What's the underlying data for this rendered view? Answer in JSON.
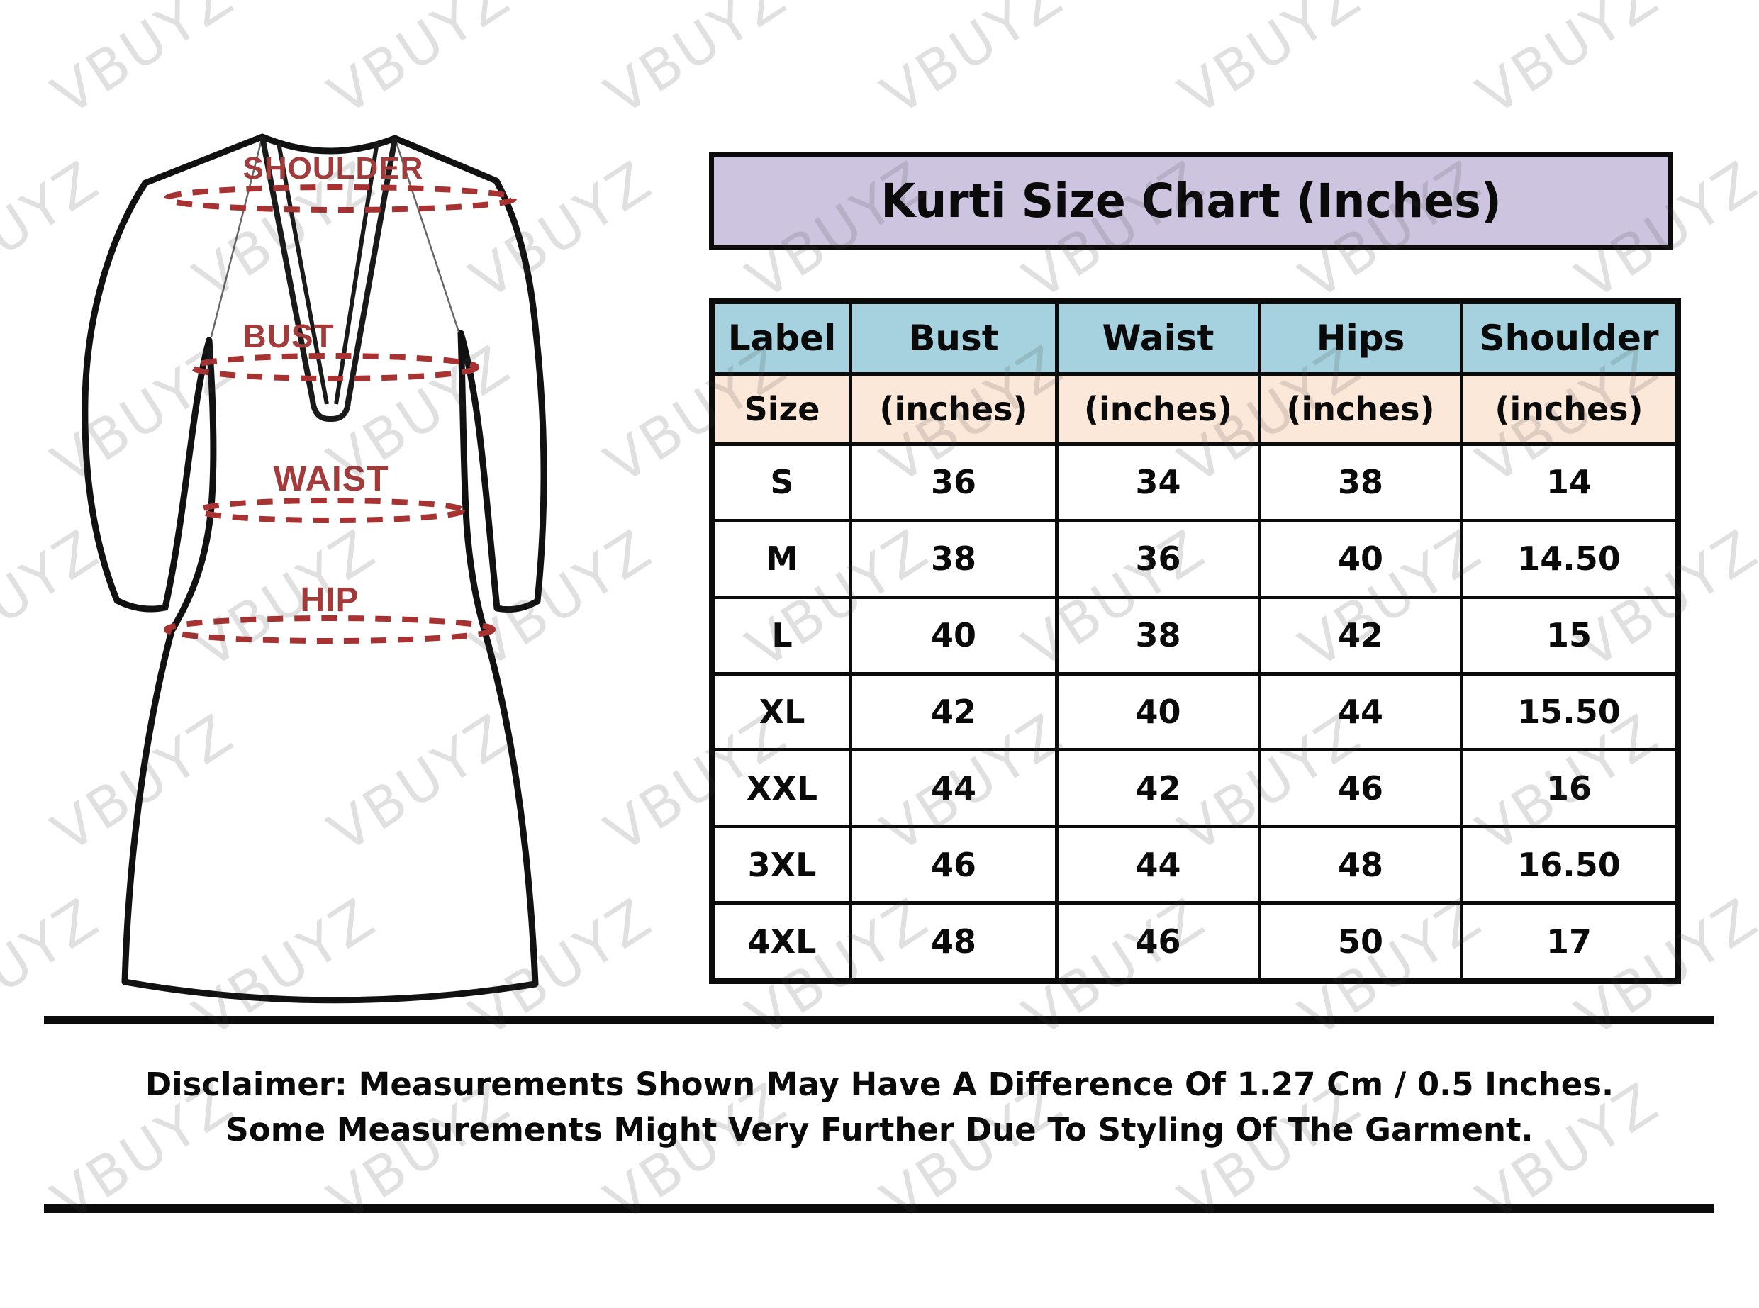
{
  "page": {
    "title_banner": "Kurti Size Chart (Inches)",
    "watermark_text": "VBUYZ"
  },
  "diagram": {
    "shoulder_label": "SHOULDER",
    "bust_label": "BUST",
    "waist_label": "WAIST",
    "hip_label": "HIP"
  },
  "table": {
    "columns": [
      "Label",
      "Bust",
      "Waist",
      "Hips",
      "Shoulder"
    ],
    "subcolumns": [
      "Size",
      "(inches)",
      "(inches)",
      "(inches)",
      "(inches)"
    ],
    "rows": [
      [
        "S",
        "36",
        "34",
        "38",
        "14"
      ],
      [
        "M",
        "38",
        "36",
        "40",
        "14.50"
      ],
      [
        "L",
        "40",
        "38",
        "42",
        "15"
      ],
      [
        "XL",
        "42",
        "40",
        "44",
        "15.50"
      ],
      [
        "XXL",
        "44",
        "42",
        "46",
        "16"
      ],
      [
        "3XL",
        "46",
        "44",
        "48",
        "16.50"
      ],
      [
        "4XL",
        "48",
        "46",
        "50",
        "17"
      ]
    ]
  },
  "disclaimer": {
    "line1": "Disclaimer: Measurements Shown May Have A Difference Of 1.27 Cm / 0.5 Inches.",
    "line2": "Some Measurements Might Very Further Due To Styling Of The Garment."
  },
  "colors": {
    "banner_bg": "#cdc5e0",
    "header_bg": "#a5d2de",
    "subheader_bg": "#fce8d8",
    "measure_label": "#a33b3b",
    "dash": "#a83232",
    "ink": "#0b0b0b"
  }
}
